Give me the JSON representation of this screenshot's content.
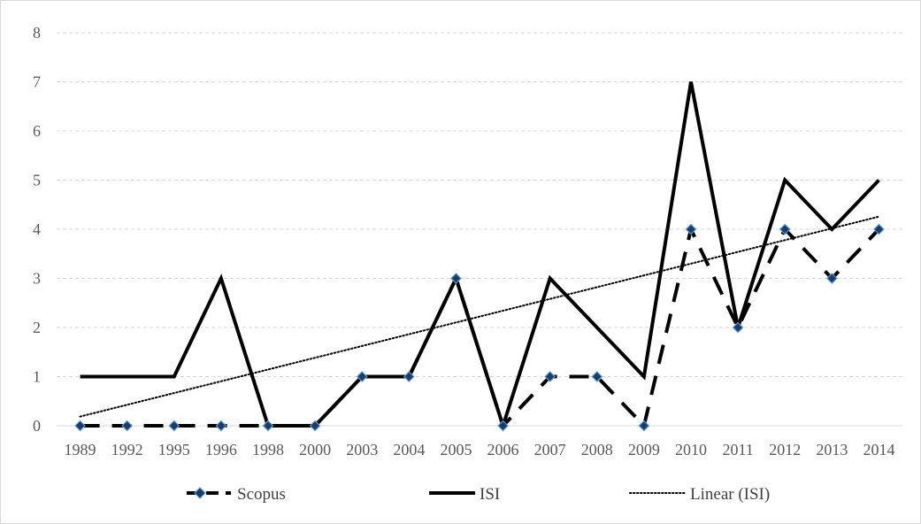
{
  "chart_data": {
    "type": "line",
    "categories": [
      "1989",
      "1992",
      "1995",
      "1996",
      "1998",
      "2000",
      "2003",
      "2004",
      "2005",
      "2006",
      "2007",
      "2008",
      "2009",
      "2010",
      "2011",
      "2012",
      "2013",
      "2014"
    ],
    "series": [
      {
        "name": "Scopus",
        "values": [
          0,
          0,
          0,
          0,
          0,
          0,
          1,
          1,
          3,
          0,
          1,
          1,
          0,
          4,
          2,
          4,
          3,
          4
        ],
        "color": "#000000",
        "style": "dashed-with-diamond-markers",
        "marker_fill": "#1f3b63",
        "marker_stroke": "#5b9bd5"
      },
      {
        "name": "ISI",
        "values": [
          1,
          1,
          1,
          3,
          0,
          0,
          1,
          1,
          3,
          0,
          3,
          2,
          1,
          7,
          2,
          5,
          4,
          5
        ],
        "color": "#000000",
        "style": "solid"
      },
      {
        "name": "Linear (ISI)",
        "trend_of": "ISI",
        "color": "#000000",
        "style": "dotted"
      }
    ],
    "ylim": [
      0,
      8
    ],
    "yticks": [
      "0",
      "1",
      "2",
      "3",
      "4",
      "5",
      "6",
      "7",
      "8"
    ],
    "grid": "horizontal-dashed",
    "grid_color": "#d9d9d9",
    "legend_position": "bottom",
    "title": "",
    "xlabel": "",
    "ylabel": ""
  }
}
